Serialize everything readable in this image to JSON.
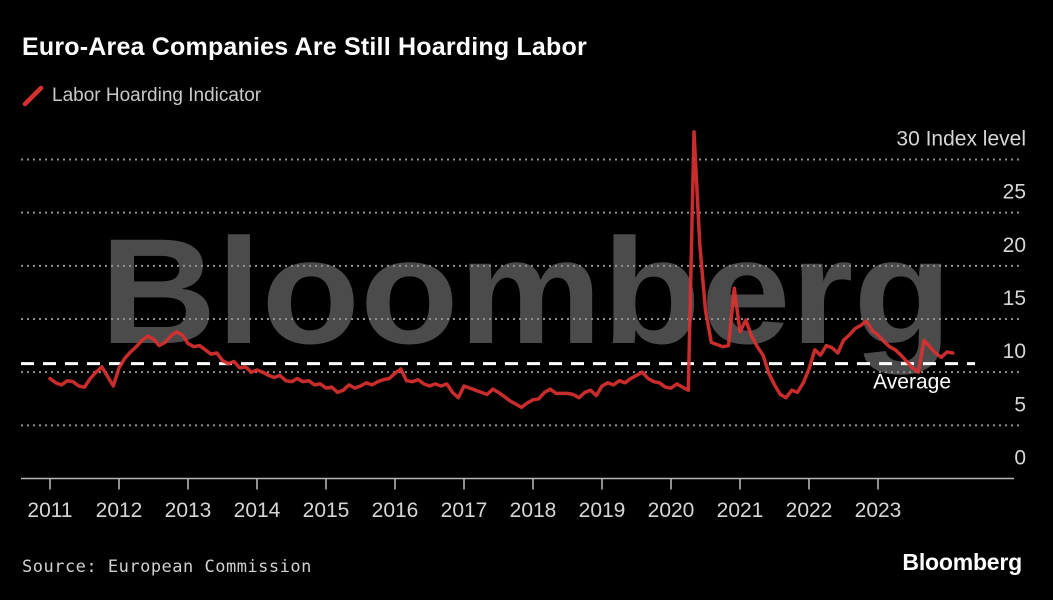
{
  "header": {
    "title": "Euro-Area Companies Are Still Hoarding Labor",
    "legend": {
      "swatch_color": "#d93030",
      "label": "Labor Hoarding Indicator"
    }
  },
  "watermark": "Bloomberg",
  "footer": {
    "source": "Source: European Commission",
    "brand": "Bloomberg"
  },
  "colors": {
    "background": "#000000",
    "line": "#d93030",
    "grid": "#8f8f8f",
    "axis": "#b5b5b5",
    "tick_label": "#d6d6d6",
    "average_line": "#ffffff",
    "watermark": "#4b4b4b"
  },
  "chart_data": {
    "type": "line",
    "title": "Euro-Area Companies Are Still Hoarding Labor",
    "xlabel": "",
    "ylabel": "Index level",
    "y_axis_annotation": "Index level",
    "grid": "dotted-horizontal",
    "legend_position": "top-left",
    "y_labels_position": "right",
    "ylim": [
      0,
      33
    ],
    "y_ticks": [
      0,
      5,
      10,
      15,
      20,
      25,
      30
    ],
    "x_tick_labels": [
      "2011",
      "2012",
      "2013",
      "2014",
      "2015",
      "2016",
      "2017",
      "2018",
      "2019",
      "2020",
      "2021",
      "2022",
      "2023"
    ],
    "frequency": "monthly",
    "start": {
      "year": 2011,
      "month": 1
    },
    "average_line": {
      "label": "Average",
      "value": 10.8
    },
    "series": [
      {
        "name": "Labor Hoarding Indicator",
        "color": "#d93030",
        "values": [
          9.4,
          9.0,
          8.8,
          9.2,
          9.1,
          8.7,
          8.6,
          9.4,
          10.0,
          10.5,
          9.6,
          8.7,
          10.4,
          11.3,
          11.9,
          12.4,
          13.0,
          13.4,
          13.1,
          12.5,
          12.8,
          13.4,
          13.8,
          13.5,
          12.7,
          12.4,
          12.5,
          12.1,
          11.7,
          11.8,
          11.1,
          10.8,
          11.0,
          10.4,
          10.5,
          10.0,
          10.2,
          10.0,
          9.7,
          9.5,
          9.7,
          9.2,
          9.1,
          9.4,
          9.1,
          9.2,
          8.8,
          8.9,
          8.5,
          8.6,
          8.1,
          8.3,
          8.8,
          8.5,
          8.7,
          9.0,
          8.8,
          9.1,
          9.3,
          9.4,
          9.9,
          10.3,
          9.2,
          9.1,
          9.3,
          8.9,
          8.7,
          8.9,
          8.7,
          8.9,
          8.1,
          7.6,
          8.7,
          8.5,
          8.3,
          8.1,
          7.9,
          8.4,
          8.1,
          7.7,
          7.3,
          7.0,
          6.7,
          7.1,
          7.4,
          7.5,
          8.1,
          8.4,
          8.0,
          8.0,
          8.0,
          7.9,
          7.6,
          8.1,
          8.3,
          7.8,
          8.7,
          9.0,
          8.8,
          9.2,
          9.0,
          9.4,
          9.7,
          10.0,
          9.4,
          9.1,
          9.0,
          8.6,
          8.5,
          8.9,
          8.6,
          8.3,
          32.6,
          22.0,
          15.8,
          12.8,
          12.6,
          12.4,
          12.5,
          17.9,
          13.8,
          14.9,
          13.4,
          12.4,
          11.6,
          9.9,
          8.8,
          7.9,
          7.6,
          8.3,
          8.1,
          9.0,
          10.3,
          12.1,
          11.6,
          12.5,
          12.3,
          11.8,
          13.0,
          13.5,
          14.1,
          14.4,
          14.8,
          13.9,
          13.5,
          12.9,
          12.4,
          12.1,
          11.6,
          11.0,
          10.4,
          10.0,
          13.0,
          12.4,
          11.8,
          11.4,
          11.9,
          11.8
        ]
      }
    ]
  }
}
